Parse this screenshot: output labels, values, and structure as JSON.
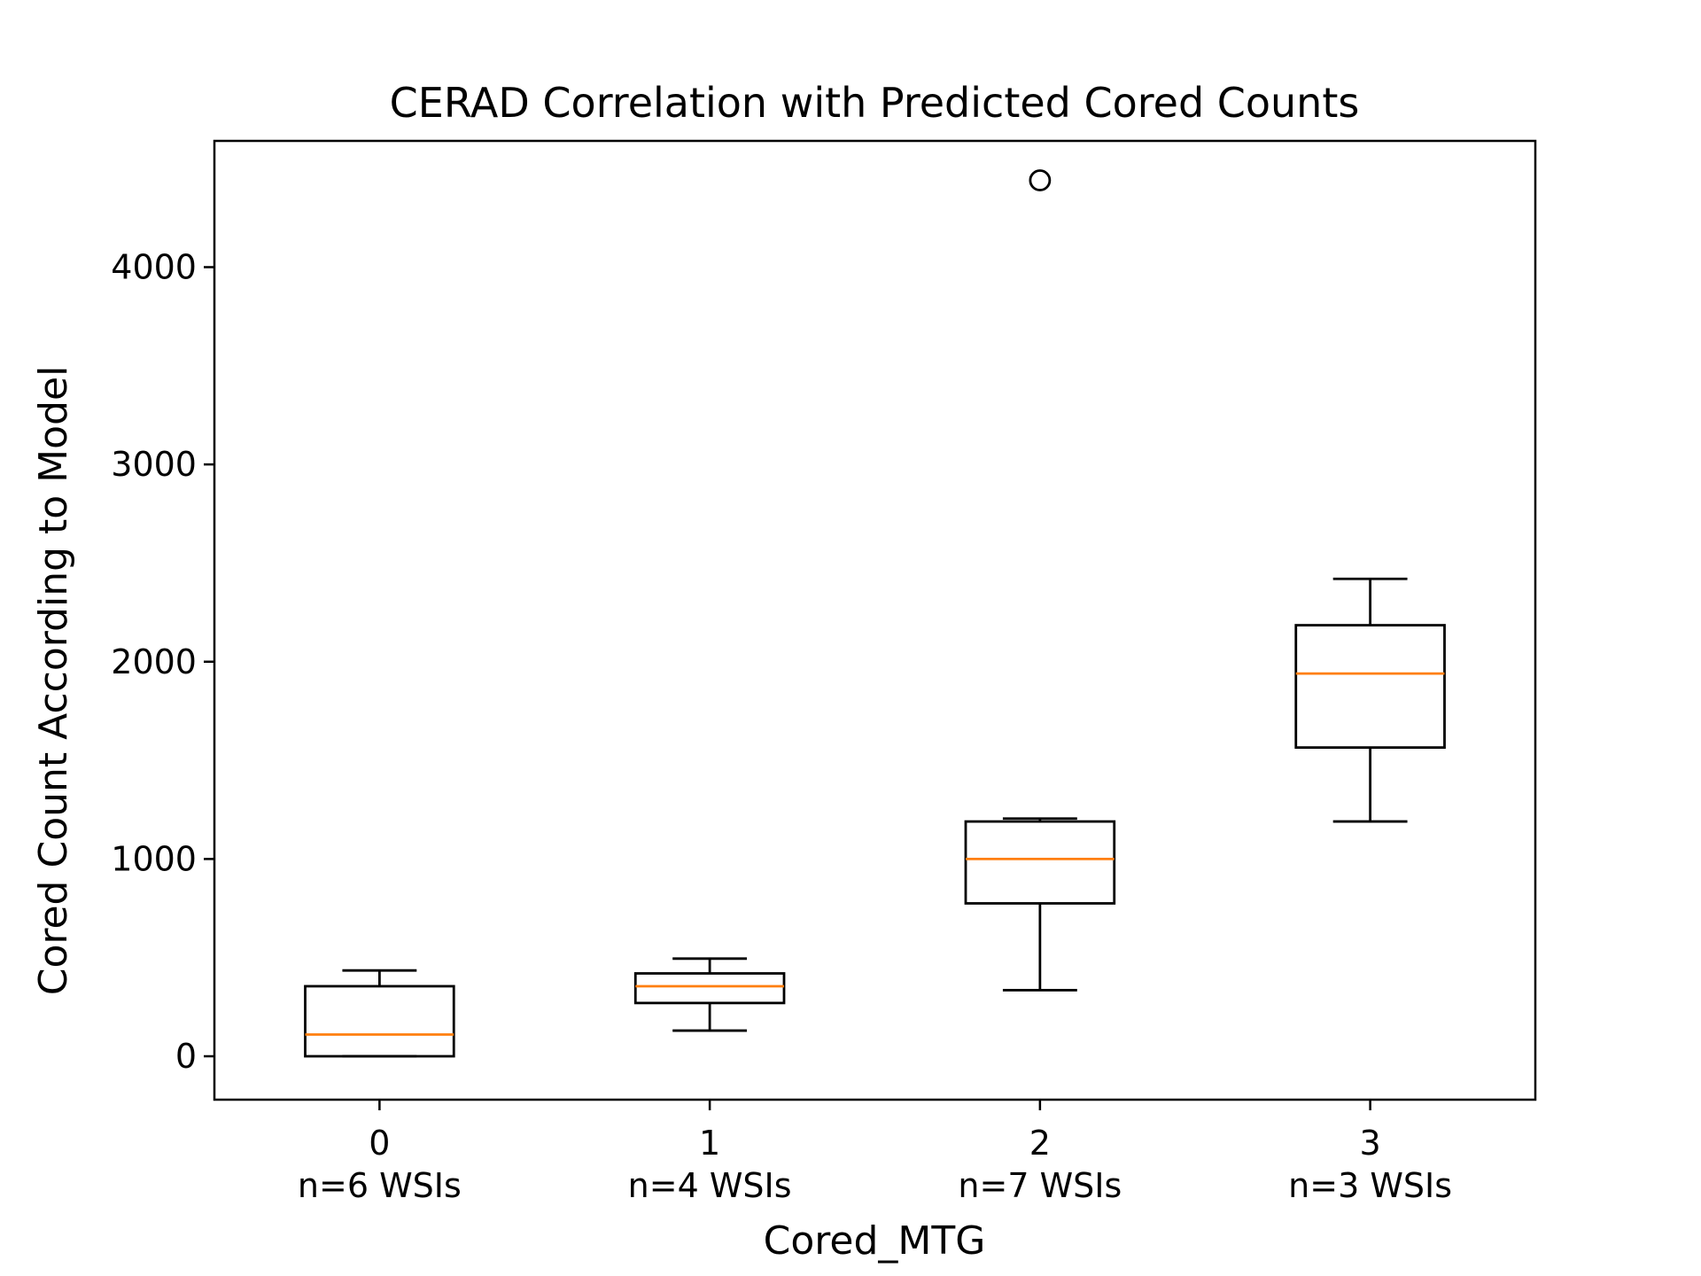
{
  "chart_data": {
    "type": "boxplot",
    "title": "CERAD Correlation with Predicted Cored Counts",
    "xlabel": "Cored_MTG",
    "ylabel": "Cored Count According to Model",
    "ylim": [
      -220,
      4640
    ],
    "yticks": [
      0,
      1000,
      2000,
      3000,
      4000
    ],
    "grid": false,
    "categories": [
      "0",
      "1",
      "2",
      "3"
    ],
    "category_sublabels": [
      "n=6 WSIs",
      "n=4 WSIs",
      "n=7 WSIs",
      "n=3 WSIs"
    ],
    "boxes": [
      {
        "whisker_low": 0,
        "q1": 0,
        "median": 110,
        "q3": 355,
        "whisker_high": 435,
        "outliers": []
      },
      {
        "whisker_low": 130,
        "q1": 270,
        "median": 355,
        "q3": 420,
        "whisker_high": 495,
        "outliers": []
      },
      {
        "whisker_low": 335,
        "q1": 775,
        "median": 1000,
        "q3": 1190,
        "whisker_high": 1205,
        "outliers": [
          4440
        ]
      },
      {
        "whisker_low": 1190,
        "q1": 1565,
        "median": 1940,
        "q3": 2185,
        "whisker_high": 2420,
        "outliers": []
      }
    ],
    "colors": {
      "box": "#000000",
      "median": "#ff7f0e",
      "flier": "#000000"
    }
  }
}
